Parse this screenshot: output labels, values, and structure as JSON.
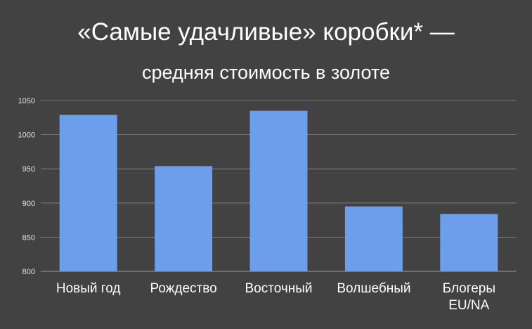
{
  "chart_data": {
    "type": "bar",
    "title": "«Самые удачливые» коробки* —",
    "subtitle": "средняя стоимость в золоте",
    "categories": [
      "Новый год",
      "Рождество",
      "Восточный",
      "Волшебный",
      "Блогеры EU/NA"
    ],
    "category_lines": [
      [
        "Новый год"
      ],
      [
        "Рождество"
      ],
      [
        "Восточный"
      ],
      [
        "Волшебный"
      ],
      [
        "Блогеры",
        "EU/NA"
      ]
    ],
    "values": [
      1029,
      954,
      1035,
      895,
      884
    ],
    "ylim": [
      800,
      1050
    ],
    "yticks": [
      800,
      850,
      900,
      950,
      1000,
      1050
    ],
    "grid": true,
    "colors": {
      "bar": "#6d9eeb",
      "background": "#424242",
      "grid": "#8a8a8a"
    }
  }
}
